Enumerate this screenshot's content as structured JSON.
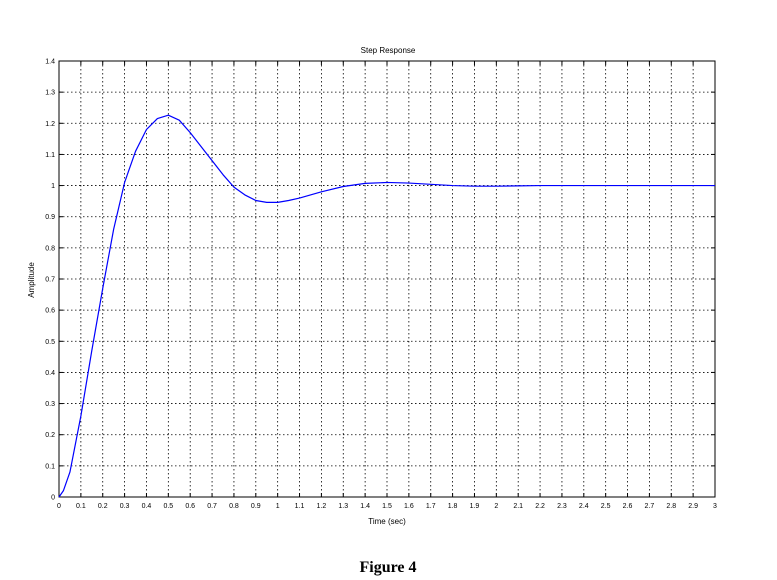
{
  "chart_data": {
    "type": "line",
    "title": "Step Response",
    "xlabel": "Time (sec)",
    "ylabel": "Amplitude",
    "xlim": [
      0,
      3
    ],
    "ylim": [
      0,
      1.4
    ],
    "grid": true,
    "x_ticks": [
      "0",
      "0.1",
      "0.2",
      "0.3",
      "0.4",
      "0.5",
      "0.6",
      "0.7",
      "0.8",
      "0.9",
      "1",
      "1.1",
      "1.2",
      "1.3",
      "1.4",
      "1.5",
      "1.6",
      "1.7",
      "1.8",
      "1.9",
      "2",
      "2.1",
      "2.2",
      "2.3",
      "2.4",
      "2.5",
      "2.6",
      "2.7",
      "2.8",
      "2.9",
      "3"
    ],
    "y_ticks": [
      "0",
      "0.1",
      "0.2",
      "0.3",
      "0.4",
      "0.5",
      "0.6",
      "0.7",
      "0.8",
      "0.9",
      "1",
      "1.1",
      "1.2",
      "1.3",
      "1.4"
    ],
    "series": [
      {
        "color": "#0000ff",
        "x": [
          0,
          0.02,
          0.05,
          0.1,
          0.15,
          0.2,
          0.25,
          0.3,
          0.35,
          0.4,
          0.45,
          0.5,
          0.55,
          0.6,
          0.65,
          0.7,
          0.75,
          0.8,
          0.85,
          0.9,
          0.95,
          1.0,
          1.05,
          1.1,
          1.2,
          1.3,
          1.4,
          1.5,
          1.6,
          1.7,
          1.8,
          1.9,
          2.0,
          2.1,
          2.2,
          2.5,
          3.0
        ],
        "y": [
          0,
          0.02,
          0.08,
          0.26,
          0.47,
          0.67,
          0.86,
          1.01,
          1.11,
          1.18,
          1.215,
          1.226,
          1.21,
          1.17,
          1.125,
          1.08,
          1.035,
          0.995,
          0.97,
          0.952,
          0.946,
          0.946,
          0.952,
          0.96,
          0.98,
          0.997,
          1.007,
          1.01,
          1.008,
          1.004,
          1.0,
          0.998,
          0.998,
          0.999,
          1.0,
          1.0,
          1.0
        ]
      }
    ]
  },
  "caption": "Figure 4"
}
